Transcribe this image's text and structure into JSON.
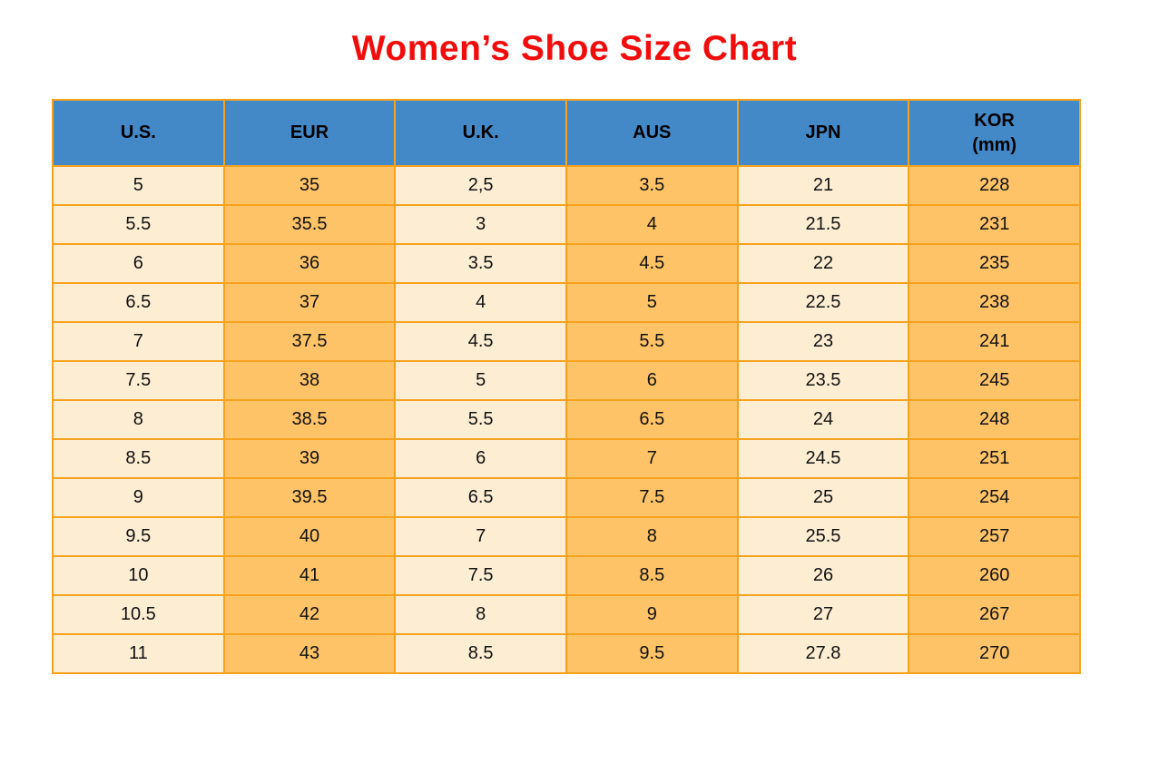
{
  "title": "Women’s Shoe Size Chart",
  "colors": {
    "title_red": "#f20d0d",
    "header_blue": "#4389c8",
    "cell_orange": "#fec366",
    "cell_cream": "#fdeed3",
    "border_orange": "#f6a21e",
    "text_dark": "#111111"
  },
  "chart_data": {
    "type": "table",
    "title": "Women’s Shoe Size Chart",
    "columns": [
      {
        "label": "U.S.",
        "sublabel": ""
      },
      {
        "label": "EUR",
        "sublabel": ""
      },
      {
        "label": "U.K.",
        "sublabel": ""
      },
      {
        "label": "AUS",
        "sublabel": ""
      },
      {
        "label": "JPN",
        "sublabel": ""
      },
      {
        "label": "KOR",
        "sublabel": "(mm)"
      }
    ],
    "rows": [
      [
        "5",
        "35",
        "2,5",
        "3.5",
        "21",
        "228"
      ],
      [
        "5.5",
        "35.5",
        "3",
        "4",
        "21.5",
        "231"
      ],
      [
        "6",
        "36",
        "3.5",
        "4.5",
        "22",
        "235"
      ],
      [
        "6.5",
        "37",
        "4",
        "5",
        "22.5",
        "238"
      ],
      [
        "7",
        "37.5",
        "4.5",
        "5.5",
        "23",
        "241"
      ],
      [
        "7.5",
        "38",
        "5",
        "6",
        "23.5",
        "245"
      ],
      [
        "8",
        "38.5",
        "5.5",
        "6.5",
        "24",
        "248"
      ],
      [
        "8.5",
        "39",
        "6",
        "7",
        "24.5",
        "251"
      ],
      [
        "9",
        "39.5",
        "6.5",
        "7.5",
        "25",
        "254"
      ],
      [
        "9.5",
        "40",
        "7",
        "8",
        "25.5",
        "257"
      ],
      [
        "10",
        "41",
        "7.5",
        "8.5",
        "26",
        "260"
      ],
      [
        "10.5",
        "42",
        "8",
        "9",
        "27",
        "267"
      ],
      [
        "11",
        "43",
        "8.5",
        "9.5",
        "27.8",
        "270"
      ]
    ]
  }
}
